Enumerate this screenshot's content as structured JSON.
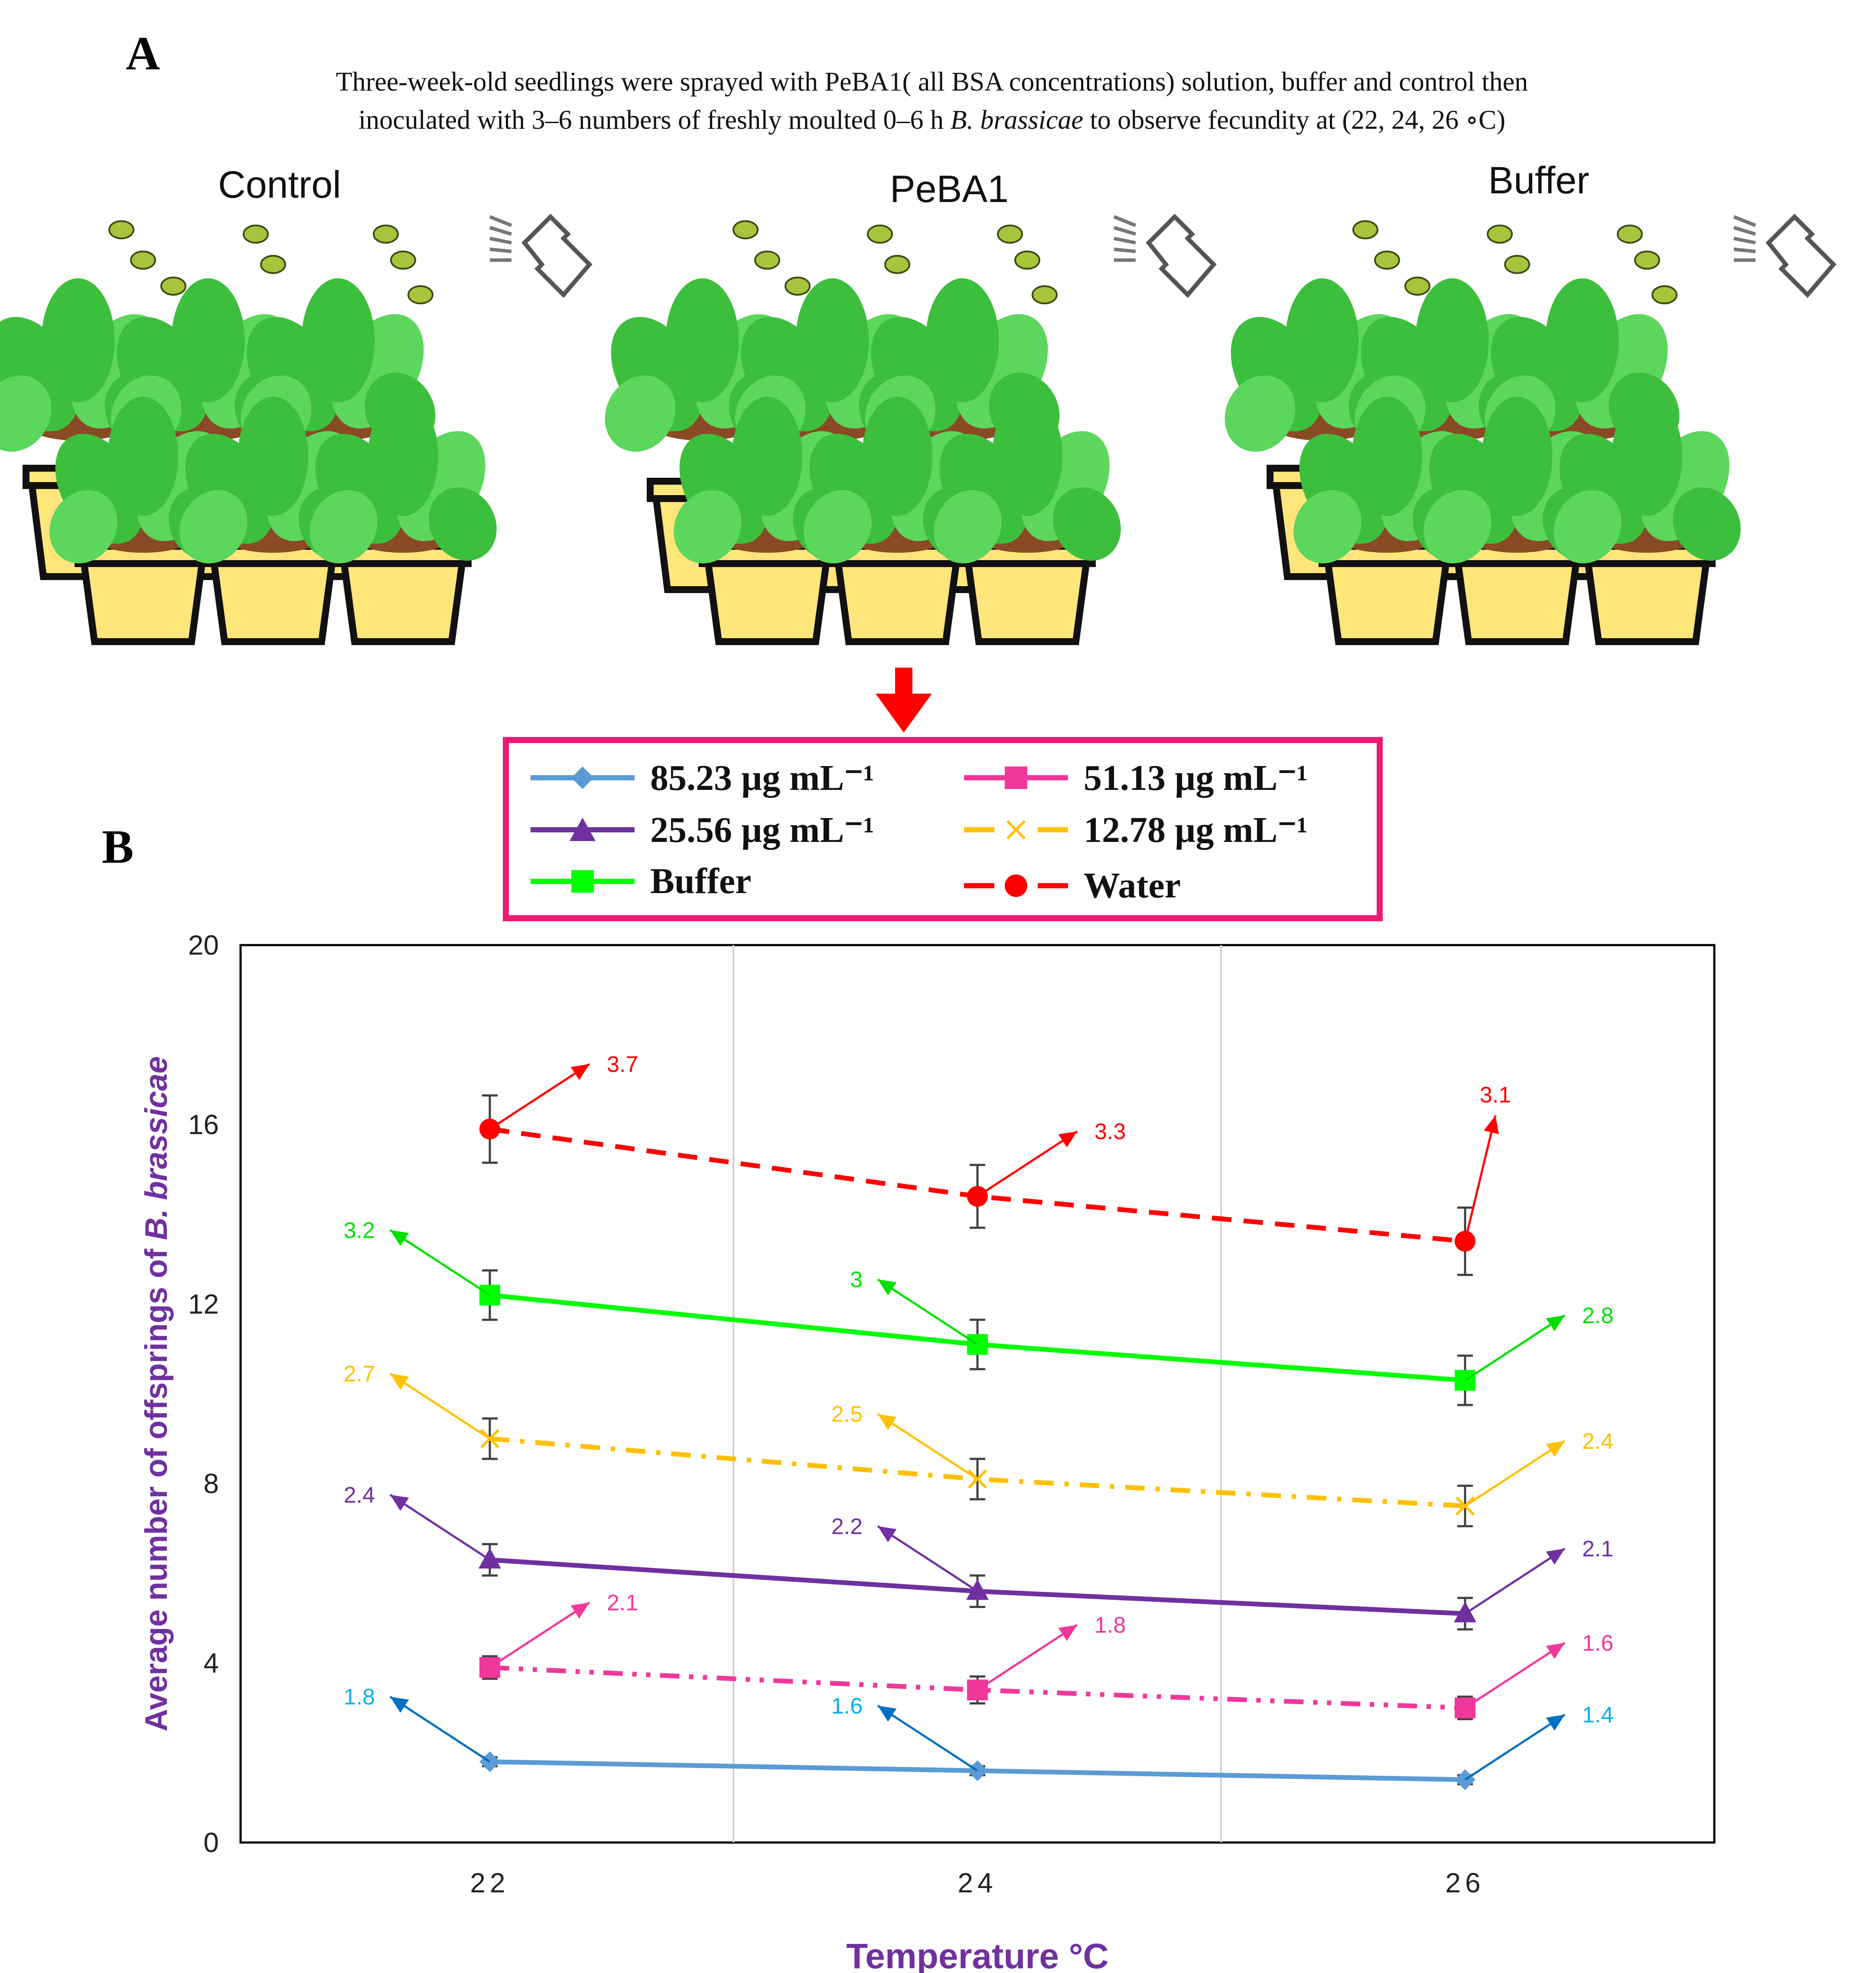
{
  "panel_a": {
    "label": "A",
    "caption_line1": "Three-week-old seedlings were sprayed with PeBA1( all BSA concentrations) solution, buffer and control then",
    "caption_line2_pre": "inoculated with  3–6 numbers of freshly moulted 0–6 h ",
    "caption_species": "B. brassicae",
    "caption_line2_post": " to observe fecundity at (22, 24, 26 ∘C)",
    "groups": [
      {
        "title": "Control",
        "icon": "potted-seedlings-icon"
      },
      {
        "title": "PeBA1",
        "icon": "potted-seedlings-icon"
      },
      {
        "title": "Buffer",
        "icon": "potted-seedlings-icon"
      }
    ],
    "arrow_icon": "down-arrow-icon",
    "spray_icon": "spray-bottle-icon"
  },
  "panel_b": {
    "label": "B"
  },
  "legend": {
    "items": [
      {
        "label": "85.23 µg mL⁻¹",
        "color": "#5b9bd5",
        "marker": "diamond",
        "dash": "solid"
      },
      {
        "label": "51.13 µg mL⁻¹",
        "color": "#f0389a",
        "marker": "square",
        "dash": "dashdotdot"
      },
      {
        "label": "25.56 µg mL⁻¹",
        "color": "#7030a0",
        "marker": "triangle",
        "dash": "solid"
      },
      {
        "label": "12.78 µg mL⁻¹",
        "color": "#ffc000",
        "marker": "x",
        "dash": "dashdot"
      },
      {
        "label": "Buffer",
        "color": "#00ff00",
        "marker": "square",
        "dash": "solid"
      },
      {
        "label": "Water",
        "color": "#ff0000",
        "marker": "circle",
        "dash": "dash"
      }
    ]
  },
  "chart_data": {
    "type": "line",
    "title": "",
    "xlabel": "Temperature °C",
    "ylabel_pre": "Average number  of offsprings of ",
    "ylabel_species": "B. brassicae",
    "ylabel_color": "#7030a0",
    "xlabel_color": "#7030a0",
    "x": [
      22,
      24,
      26
    ],
    "x_tick_labels": [
      "22",
      "24",
      "26"
    ],
    "ylim": [
      0,
      20
    ],
    "y_ticks": [
      0,
      4,
      8,
      12,
      16,
      20
    ],
    "y_tick_labels": [
      "0",
      "4",
      "8",
      "12",
      "16",
      "20"
    ],
    "series": [
      {
        "name": "85.23 µg mL⁻¹",
        "color": "#5b9bd5",
        "marker": "diamond",
        "dash": "solid",
        "label_color": "#00b0f0",
        "arrow_color": "#0070c0",
        "values": [
          1.8,
          1.6,
          1.4
        ],
        "errors": [
          0.1,
          0.1,
          0.1
        ],
        "annotations": [
          "1.8",
          "1.6",
          "1.4"
        ],
        "annotation_dir": [
          "upleft",
          "upleft",
          "upright"
        ]
      },
      {
        "name": "51.13 µg mL⁻¹",
        "color": "#f0389a",
        "marker": "square",
        "dash": "dashdotdot",
        "label_color": "#f0389a",
        "arrow_color": "#f0389a",
        "values": [
          3.9,
          3.4,
          3.0
        ],
        "errors": [
          0.25,
          0.3,
          0.25
        ],
        "annotations": [
          "2.1",
          "1.8",
          "1.6"
        ],
        "annotation_dir": [
          "upright",
          "upright",
          "upright"
        ]
      },
      {
        "name": "25.56 µg mL⁻¹",
        "color": "#7030a0",
        "marker": "triangle",
        "dash": "solid",
        "label_color": "#7030a0",
        "arrow_color": "#7030a0",
        "values": [
          6.3,
          5.6,
          5.1
        ],
        "errors": [
          0.35,
          0.35,
          0.35
        ],
        "annotations": [
          "2.4",
          "2.2",
          "2.1"
        ],
        "annotation_dir": [
          "upleft",
          "upleft",
          "upright"
        ]
      },
      {
        "name": "12.78 µg mL⁻¹",
        "color": "#ffc000",
        "marker": "x",
        "dash": "dashdot",
        "label_color": "#ffc000",
        "arrow_color": "#ffc000",
        "values": [
          9.0,
          8.1,
          7.5
        ],
        "errors": [
          0.45,
          0.45,
          0.45
        ],
        "annotations": [
          "2.7",
          "2.5",
          "2.4"
        ],
        "annotation_dir": [
          "upleft",
          "upleft",
          "upright"
        ]
      },
      {
        "name": "Buffer",
        "color": "#00ff00",
        "marker": "square",
        "dash": "solid",
        "label_color": "#00e000",
        "arrow_color": "#00e000",
        "values": [
          12.2,
          11.1,
          10.3
        ],
        "errors": [
          0.55,
          0.55,
          0.55
        ],
        "annotations": [
          "3.2",
          "3",
          "2.8"
        ],
        "annotation_dir": [
          "upleft",
          "upleft",
          "upright"
        ]
      },
      {
        "name": "Water",
        "color": "#ff0000",
        "marker": "circle",
        "dash": "dash",
        "label_color": "#ff0000",
        "arrow_color": "#ff0000",
        "values": [
          15.9,
          14.4,
          13.4
        ],
        "errors": [
          0.75,
          0.7,
          0.75
        ],
        "annotations": [
          "3.7",
          "3.3",
          "3.1"
        ],
        "annotation_dir": [
          "upright",
          "upright",
          "up"
        ]
      }
    ]
  }
}
